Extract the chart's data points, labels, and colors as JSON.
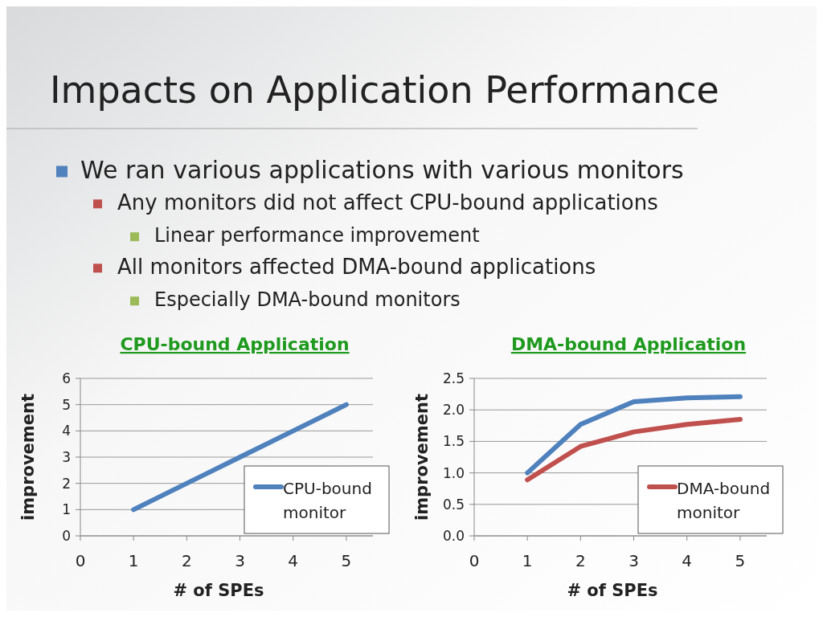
{
  "chart_data": [
    {
      "type": "other",
      "title": "Impacts on Application Performance",
      "annotations": [
        "We ran various applications with various monitors",
        "Any monitors did not affect CPU-bound applications",
        "Linear performance improvement",
        "All monitors affected DMA-bound applications",
        "Especially DMA-bound monitors"
      ]
    },
    {
      "type": "line",
      "title": "CPU-bound Application",
      "xlabel": "# of SPEs",
      "ylabel": "improvement",
      "x": [
        1,
        2,
        3,
        4,
        5
      ],
      "xlim": [
        0,
        5.5
      ],
      "xticks": [
        0,
        1,
        2,
        3,
        4,
        5
      ],
      "ylim": [
        0,
        6
      ],
      "yticks": [
        0,
        1,
        2,
        3,
        4,
        5,
        6
      ],
      "grid": "y",
      "legend": "bottom right",
      "marker": "none",
      "series": [
        {
          "name": "CPU-bound monitor",
          "color": "#4f81bd",
          "values": [
            1,
            2,
            3,
            4,
            5
          ]
        }
      ]
    },
    {
      "type": "line",
      "title": "DMA-bound Application",
      "xlabel": "# of SPEs",
      "ylabel": "improvement",
      "x": [
        1,
        2,
        3,
        4,
        5
      ],
      "xlim": [
        0,
        5.5
      ],
      "xticks": [
        0,
        1,
        2,
        3,
        4,
        5
      ],
      "ylim": [
        0,
        2.5
      ],
      "yticks": [
        {
          "value": 0,
          "label": "0.0"
        },
        {
          "value": 0.5,
          "label": "0.5"
        },
        {
          "value": 1,
          "label": "1.0"
        },
        {
          "value": 1.5,
          "label": "1.5"
        },
        {
          "value": 2,
          "label": "2.0"
        },
        {
          "value": 2.5,
          "label": "2.5"
        }
      ],
      "grid": "y",
      "legend": "bottom right",
      "marker": "none",
      "series": [
        {
          "color": "#4f81bd",
          "values": [
            1.0,
            1.77,
            2.13,
            2.19,
            2.21
          ]
        },
        {
          "name": "DMA-bound monitor",
          "color": "#c0504d",
          "values": [
            0.89,
            1.42,
            1.65,
            1.77,
            1.85
          ]
        }
      ]
    }
  ]
}
